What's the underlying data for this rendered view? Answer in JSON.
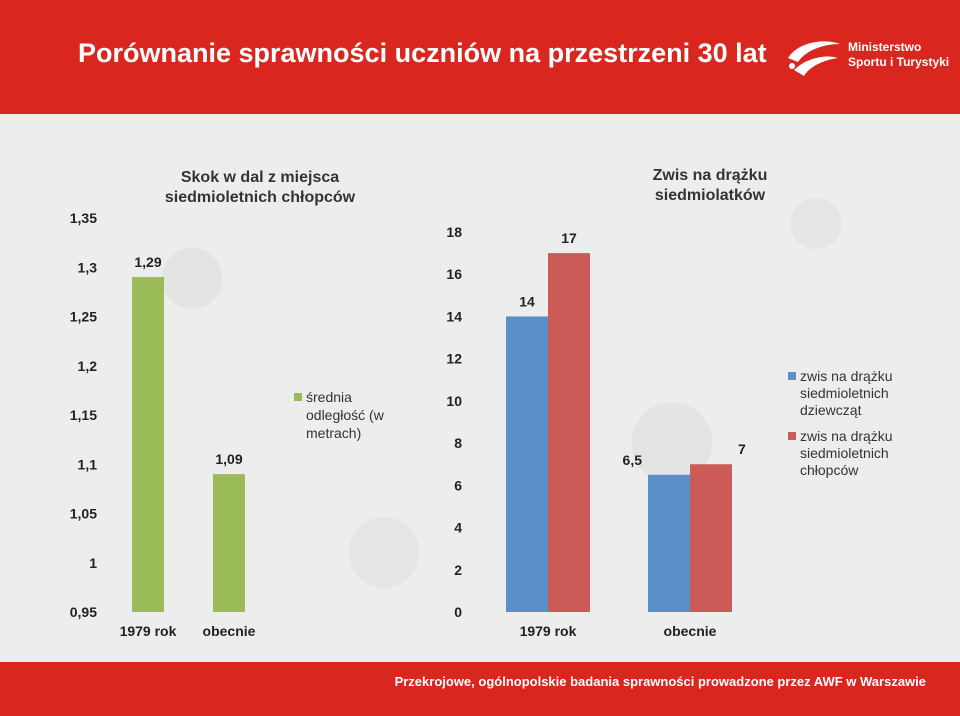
{
  "header": {
    "title": "Porównanie sprawności uczniów na przestrzeni 30 lat"
  },
  "logo": {
    "line1": "Ministerstwo",
    "line2": "Sportu i Turystyki"
  },
  "footer": {
    "text": "Przekrojowe, ogólnopolskie  badania sprawności prowadzone przez AWF w Warszawie"
  },
  "colors": {
    "header": "#d9261f",
    "green": "#9bbb59",
    "blue": "#5b8fc9",
    "red": "#cc5b57"
  },
  "chart_data": [
    {
      "type": "bar",
      "title_lines": [
        "Skok w dal z miejsca",
        "siedmioletnich chłopców"
      ],
      "categories": [
        "1979 rok",
        "obecnie"
      ],
      "series": [
        {
          "name_lines": [
            "średnia",
            "odległość (w",
            "metrach)"
          ],
          "values": [
            1.29,
            1.09
          ],
          "value_labels": [
            "1,29",
            "1,09"
          ],
          "color": "#9bbb59"
        }
      ],
      "ylim": [
        0.95,
        1.35
      ],
      "yticks": [
        0.95,
        1,
        1.05,
        1.1,
        1.15,
        1.2,
        1.25,
        1.3,
        1.35
      ],
      "ytick_labels": [
        "0,95",
        "1",
        "1,05",
        "1,1",
        "1,15",
        "1,2",
        "1,25",
        "1,3",
        "1,35"
      ],
      "grid": false,
      "legend_position": "right"
    },
    {
      "type": "bar",
      "title_lines": [
        "Zwis na drążku",
        "siedmiolatków"
      ],
      "categories": [
        "1979 rok",
        "obecnie"
      ],
      "series": [
        {
          "name_lines": [
            "zwis na drążku",
            "siedmioletnich",
            "dziewcząt"
          ],
          "values": [
            14,
            6.5
          ],
          "value_labels": [
            "14",
            "6,5"
          ],
          "color": "#5b8fc9"
        },
        {
          "name_lines": [
            "zwis na drążku",
            "siedmioletnich",
            "chłopców"
          ],
          "values": [
            17,
            7
          ],
          "value_labels": [
            "17",
            "7"
          ],
          "color": "#cc5b57"
        }
      ],
      "ylim": [
        0,
        18
      ],
      "yticks": [
        0,
        2,
        4,
        6,
        8,
        10,
        12,
        14,
        16,
        18
      ],
      "ytick_labels": [
        "0",
        "2",
        "4",
        "6",
        "8",
        "10",
        "12",
        "14",
        "16",
        "18"
      ],
      "grid": false,
      "legend_position": "right"
    }
  ]
}
